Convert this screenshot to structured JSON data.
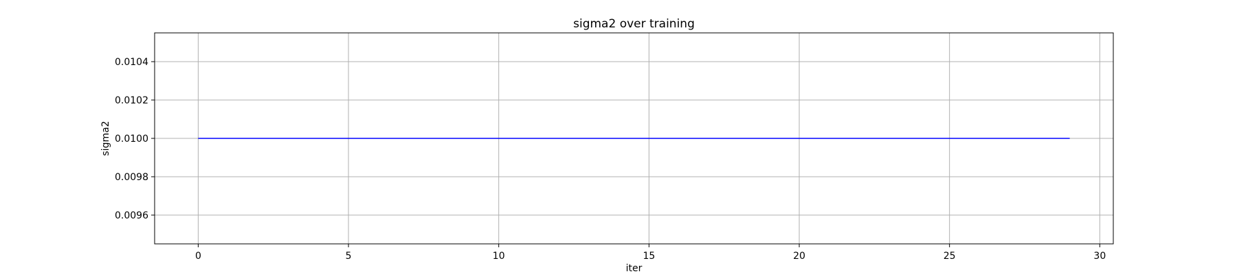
{
  "chart_data": {
    "type": "line",
    "title": "sigma2 over training",
    "xlabel": "iter",
    "ylabel": "sigma2",
    "xlim": [
      -1.45,
      30.45
    ],
    "ylim": [
      0.00945,
      0.01055
    ],
    "xticks": [
      0,
      5,
      10,
      15,
      20,
      25,
      30
    ],
    "xtick_labels": [
      "0",
      "5",
      "10",
      "15",
      "20",
      "25",
      "30"
    ],
    "yticks": [
      0.0096,
      0.0098,
      0.01,
      0.0102,
      0.0104
    ],
    "ytick_labels": [
      "0.0096",
      "0.0098",
      "0.0100",
      "0.0102",
      "0.0104"
    ],
    "grid": true,
    "series": [
      {
        "color": "#0000ff",
        "x": [
          0,
          1,
          2,
          3,
          4,
          5,
          6,
          7,
          8,
          9,
          10,
          11,
          12,
          13,
          14,
          15,
          16,
          17,
          18,
          19,
          20,
          21,
          22,
          23,
          24,
          25,
          26,
          27,
          28,
          29
        ],
        "y": [
          0.01,
          0.01,
          0.01,
          0.01,
          0.01,
          0.01,
          0.01,
          0.01,
          0.01,
          0.01,
          0.01,
          0.01,
          0.01,
          0.01,
          0.01,
          0.01,
          0.01,
          0.01,
          0.01,
          0.01,
          0.01,
          0.01,
          0.01,
          0.01,
          0.01,
          0.01,
          0.01,
          0.01,
          0.01,
          0.01
        ]
      }
    ]
  }
}
